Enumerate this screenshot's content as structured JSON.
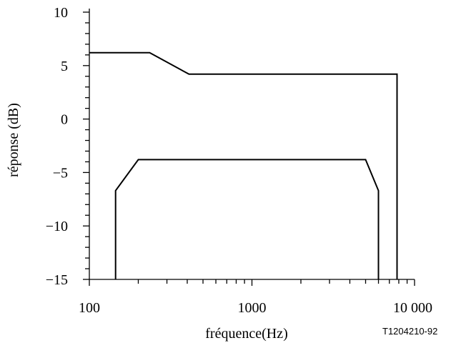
{
  "chart_data": {
    "type": "line",
    "title": "",
    "xlabel": "fréquence(Hz)",
    "ylabel": "réponse (dB)",
    "x_scale": "log",
    "xlim": [
      100,
      10000
    ],
    "ylim": [
      -15,
      10
    ],
    "x_ticks": [
      {
        "value": 100,
        "label": "100"
      },
      {
        "value": 1000,
        "label": "1000"
      },
      {
        "value": 10000,
        "label": "10 000"
      }
    ],
    "y_ticks": [
      {
        "value": 10,
        "label": "10"
      },
      {
        "value": 5,
        "label": "5"
      },
      {
        "value": 0,
        "label": "0"
      },
      {
        "value": -5,
        "label": "−5"
      },
      {
        "value": -10,
        "label": "−10"
      },
      {
        "value": -15,
        "label": "−15"
      }
    ],
    "grid": false,
    "line_color": "#000000",
    "series": [
      {
        "points": [
          [
            100,
            6.2
          ],
          [
            235,
            6.2
          ],
          [
            410,
            4.2
          ],
          [
            7800,
            4.2
          ],
          [
            7800,
            -15
          ]
        ]
      },
      {
        "points": [
          [
            145,
            -15
          ],
          [
            145,
            -6.7
          ],
          [
            200,
            -3.8
          ],
          [
            5000,
            -3.8
          ],
          [
            6000,
            -6.7
          ],
          [
            6000,
            -15
          ]
        ]
      }
    ],
    "reference_code": "T1204210-92"
  }
}
